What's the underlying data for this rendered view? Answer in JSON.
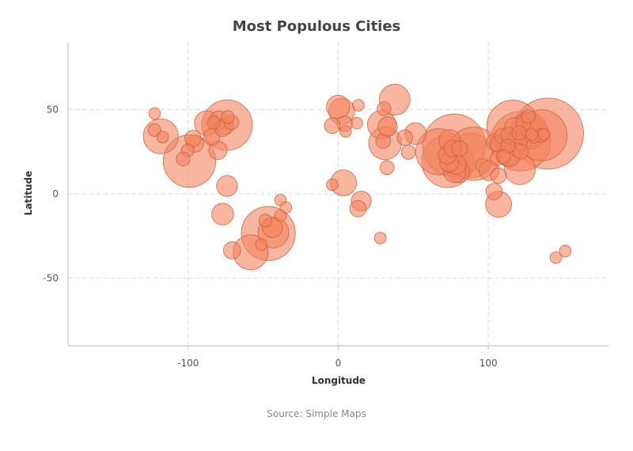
{
  "chart_data": {
    "type": "scatter",
    "variant": "bubble",
    "title": "Most Populous Cities",
    "xlabel": "Longitude",
    "ylabel": "Latitude",
    "xlim": [
      -180,
      180
    ],
    "ylim": [
      -90,
      90
    ],
    "x_ticks": [
      -100,
      0,
      100
    ],
    "y_ticks": [
      -50,
      0,
      50
    ],
    "x_tick_labels": [
      "-100",
      "0",
      "100"
    ],
    "y_tick_labels": [
      "-50",
      "0",
      "50"
    ],
    "grid": true,
    "legend": "none",
    "source": "Source: Simple Maps",
    "colors": {
      "bubble_fill": "#f4845f",
      "bubble_stroke": "#c0613f"
    },
    "points": [
      {
        "lon": 139.7,
        "lat": 35.7,
        "pop": 37.4
      },
      {
        "lon": -74.0,
        "lat": 40.7,
        "pop": 18.8
      },
      {
        "lon": -99.1,
        "lat": 19.4,
        "pop": 20.4
      },
      {
        "lon": -46.6,
        "lat": -23.5,
        "pop": 21.6
      },
      {
        "lon": 77.2,
        "lat": 28.6,
        "pop": 29.4
      },
      {
        "lon": 72.9,
        "lat": 19.1,
        "pop": 20.0
      },
      {
        "lon": 88.4,
        "lat": 22.6,
        "pop": 14.8
      },
      {
        "lon": 90.4,
        "lat": 23.8,
        "pop": 21.0
      },
      {
        "lon": 67.0,
        "lat": 24.9,
        "pop": 15.7
      },
      {
        "lon": 121.5,
        "lat": 31.2,
        "pop": 26.3
      },
      {
        "lon": 116.4,
        "lat": 39.9,
        "pop": 20.5
      },
      {
        "lon": 126.9,
        "lat": 37.5,
        "pop": 9.9
      },
      {
        "lon": 135.5,
        "lat": 34.7,
        "pop": 19.2
      },
      {
        "lon": 31.2,
        "lat": 30.0,
        "pop": 8.0
      },
      {
        "lon": 28.9,
        "lat": 41.0,
        "pop": 6.0
      },
      {
        "lon": 37.6,
        "lat": 55.8,
        "pop": 7.0
      },
      {
        "lon": 2.3,
        "lat": 48.9,
        "pop": 5.0
      },
      {
        "lon": -0.1,
        "lat": 51.5,
        "pop": 4.0
      },
      {
        "lon": 51.4,
        "lat": 35.7,
        "pop": 3.5
      },
      {
        "lon": 3.4,
        "lat": 6.5,
        "pop": 5.0
      },
      {
        "lon": 15.3,
        "lat": -4.3,
        "pop": 3.0
      },
      {
        "lon": 106.8,
        "lat": -6.2,
        "pop": 5.0
      },
      {
        "lon": 121.0,
        "lat": 14.6,
        "pop": 7.0
      },
      {
        "lon": -58.4,
        "lat": -34.6,
        "pop": 9.0
      },
      {
        "lon": -43.2,
        "lat": -22.9,
        "pop": 7.0
      },
      {
        "lon": -77.0,
        "lat": -12.0,
        "pop": 3.5
      },
      {
        "lon": -74.1,
        "lat": 4.7,
        "pop": 3.2
      },
      {
        "lon": -118.2,
        "lat": 34.1,
        "pop": 9.0
      },
      {
        "lon": -87.6,
        "lat": 41.9,
        "pop": 4.5
      },
      {
        "lon": -79.4,
        "lat": 43.7,
        "pop": 2.5
      },
      {
        "lon": -95.4,
        "lat": 29.8,
        "pop": 2.2
      },
      {
        "lon": -80.2,
        "lat": 25.8,
        "pop": 2.5
      },
      {
        "lon": -84.4,
        "lat": 33.7,
        "pop": 2.0
      },
      {
        "lon": -75.2,
        "lat": 40.0,
        "pop": 2.0
      },
      {
        "lon": -77.0,
        "lat": 38.9,
        "pop": 2.0
      },
      {
        "lon": -96.8,
        "lat": 32.8,
        "pop": 2.0
      },
      {
        "lon": -71.1,
        "lat": 42.4,
        "pop": 1.6
      },
      {
        "lon": -83.0,
        "lat": 42.3,
        "pop": 1.2
      },
      {
        "lon": -73.6,
        "lat": 45.5,
        "pop": 1.2
      },
      {
        "lon": -122.4,
        "lat": 37.8,
        "pop": 1.2
      },
      {
        "lon": -122.3,
        "lat": 47.6,
        "pop": 1.0
      },
      {
        "lon": -100.3,
        "lat": 25.7,
        "pop": 1.2
      },
      {
        "lon": -103.3,
        "lat": 20.7,
        "pop": 1.4
      },
      {
        "lon": -116.9,
        "lat": 33.6,
        "pop": 1.0
      },
      {
        "lon": -70.7,
        "lat": -33.5,
        "pop": 2.2
      },
      {
        "lon": -43.9,
        "lat": -19.9,
        "pop": 3.0
      },
      {
        "lon": -48.5,
        "lat": -15.8,
        "pop": 1.2
      },
      {
        "lon": -38.5,
        "lat": -3.7,
        "pop": 1.0
      },
      {
        "lon": -34.9,
        "lat": -8.1,
        "pop": 1.0
      },
      {
        "lon": -38.5,
        "lat": -12.9,
        "pop": 1.0
      },
      {
        "lon": -51.2,
        "lat": -30.0,
        "pop": 1.0
      },
      {
        "lon": 4.3,
        "lat": 41.5,
        "pop": 1.8
      },
      {
        "lon": -4.0,
        "lat": 40.4,
        "pop": 1.8
      },
      {
        "lon": -4.0,
        "lat": 5.4,
        "pop": 1.0
      },
      {
        "lon": 12.5,
        "lat": 41.9,
        "pop": 1.0
      },
      {
        "lon": 13.4,
        "lat": 52.5,
        "pop": 1.0
      },
      {
        "lon": 4.9,
        "lat": 37.0,
        "pop": 1.0
      },
      {
        "lon": 13.2,
        "lat": -8.8,
        "pop": 2.0
      },
      {
        "lon": 28.0,
        "lat": -26.2,
        "pop": 1.0
      },
      {
        "lon": 32.5,
        "lat": 15.6,
        "pop": 1.5
      },
      {
        "lon": 30.5,
        "lat": 50.4,
        "pop": 1.4
      },
      {
        "lon": 44.4,
        "lat": 33.3,
        "pop": 1.8
      },
      {
        "lon": 46.7,
        "lat": 24.7,
        "pop": 1.5
      },
      {
        "lon": 29.9,
        "lat": 31.2,
        "pop": 1.6
      },
      {
        "lon": 32.9,
        "lat": 39.9,
        "pop": 2.8
      },
      {
        "lon": 74.3,
        "lat": 31.5,
        "pop": 3.5
      },
      {
        "lon": 80.3,
        "lat": 13.1,
        "pop": 3.5
      },
      {
        "lon": 77.6,
        "lat": 13.0,
        "pop": 3.5
      },
      {
        "lon": 78.5,
        "lat": 17.4,
        "pop": 3.0
      },
      {
        "lon": 73.9,
        "lat": 18.5,
        "pop": 2.6
      },
      {
        "lon": 72.6,
        "lat": 23.0,
        "pop": 2.4
      },
      {
        "lon": 75.8,
        "lat": 26.9,
        "pop": 2.0
      },
      {
        "lon": 80.9,
        "lat": 26.8,
        "pop": 1.8
      },
      {
        "lon": 96.2,
        "lat": 16.8,
        "pop": 1.5
      },
      {
        "lon": 100.5,
        "lat": 13.8,
        "pop": 3.0
      },
      {
        "lon": 105.8,
        "lat": 21.0,
        "pop": 1.5
      },
      {
        "lon": 106.7,
        "lat": 10.8,
        "pop": 1.8
      },
      {
        "lon": 103.8,
        "lat": 1.4,
        "pop": 2.0
      },
      {
        "lon": 113.3,
        "lat": 23.1,
        "pop": 3.5
      },
      {
        "lon": 114.1,
        "lat": 22.5,
        "pop": 3.5
      },
      {
        "lon": 117.2,
        "lat": 39.1,
        "pop": 3.0
      },
      {
        "lon": 114.3,
        "lat": 30.6,
        "pop": 2.5
      },
      {
        "lon": 104.1,
        "lat": 30.7,
        "pop": 2.0
      },
      {
        "lon": 106.5,
        "lat": 29.6,
        "pop": 2.0
      },
      {
        "lon": 108.9,
        "lat": 34.3,
        "pop": 1.6
      },
      {
        "lon": 118.8,
        "lat": 32.1,
        "pop": 2.0
      },
      {
        "lon": 120.2,
        "lat": 30.3,
        "pop": 2.0
      },
      {
        "lon": 123.4,
        "lat": 41.8,
        "pop": 1.6
      },
      {
        "lon": 126.6,
        "lat": 45.8,
        "pop": 1.4
      },
      {
        "lon": 113.6,
        "lat": 34.8,
        "pop": 1.8
      },
      {
        "lon": 120.4,
        "lat": 36.1,
        "pop": 1.5
      },
      {
        "lon": 119.3,
        "lat": 26.1,
        "pop": 1.5
      },
      {
        "lon": 112.9,
        "lat": 28.2,
        "pop": 1.5
      },
      {
        "lon": 121.6,
        "lat": 25.0,
        "pop": 1.6
      },
      {
        "lon": 135.2,
        "lat": 34.7,
        "pop": 1.5
      },
      {
        "lon": 130.4,
        "lat": 33.6,
        "pop": 1.0
      },
      {
        "lon": 136.9,
        "lat": 35.2,
        "pop": 1.0
      },
      {
        "lon": 129.0,
        "lat": 35.2,
        "pop": 1.0
      },
      {
        "lon": 151.2,
        "lat": -33.9,
        "pop": 1.0
      },
      {
        "lon": 145.0,
        "lat": -37.8,
        "pop": 1.0
      },
      {
        "lon": 110.0,
        "lat": 22.0,
        "pop": 1.4
      }
    ]
  }
}
